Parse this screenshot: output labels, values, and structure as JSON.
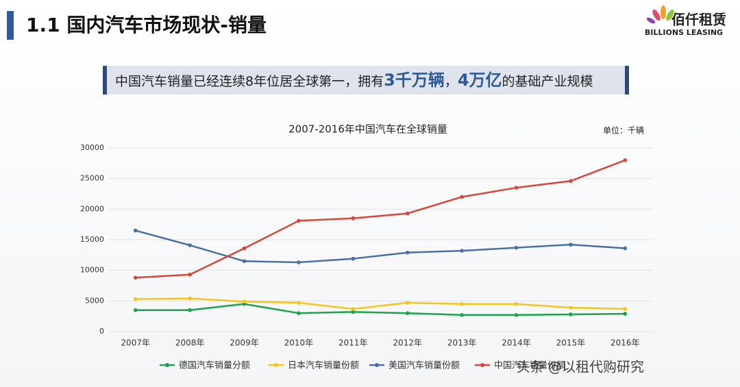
{
  "header": {
    "title": "1.1 国内汽车市场现状-销量",
    "logo_cn": "佰仟租赁",
    "logo_en": "BILLIONS LEASING"
  },
  "banner": {
    "text1": "中国汽车销量已经连续8年位居全球第一，拥有",
    "highlight1": "3千万辆",
    "text2": "，",
    "highlight2": "4万亿",
    "text3": "的基础产业规模"
  },
  "watermark": "头条 @以租代购研究",
  "chart_data": {
    "type": "line",
    "title": "2007-2016年中国汽车在全球销量",
    "unit": "单位：千辆",
    "categories": [
      "2007年",
      "2008年",
      "2009年",
      "2010年",
      "2011年",
      "2012年",
      "2013年",
      "2014年",
      "2015年",
      "2016年"
    ],
    "series": [
      {
        "name": "德国汽车销量分额",
        "color": "#1aa34a",
        "values": [
          3500,
          3500,
          4500,
          3000,
          3200,
          3000,
          2700,
          2700,
          2800,
          2900
        ]
      },
      {
        "name": "日本汽车销量份额",
        "color": "#f5c518",
        "values": [
          5300,
          5400,
          4900,
          4700,
          3700,
          4700,
          4500,
          4500,
          3900,
          3700
        ]
      },
      {
        "name": "美国汽车销量份额",
        "color": "#4a6fa5",
        "values": [
          16500,
          14100,
          11500,
          11300,
          11900,
          12900,
          13200,
          13700,
          14200,
          13600
        ]
      },
      {
        "name": "中国汽车销量份额",
        "color": "#d9453a",
        "values": [
          8800,
          9300,
          13600,
          18100,
          18500,
          19300,
          22000,
          23500,
          24600,
          28000
        ]
      }
    ],
    "ylim": [
      0,
      30000
    ],
    "yticks": [
      0,
      5000,
      10000,
      15000,
      20000,
      25000,
      30000
    ],
    "grid": true
  }
}
